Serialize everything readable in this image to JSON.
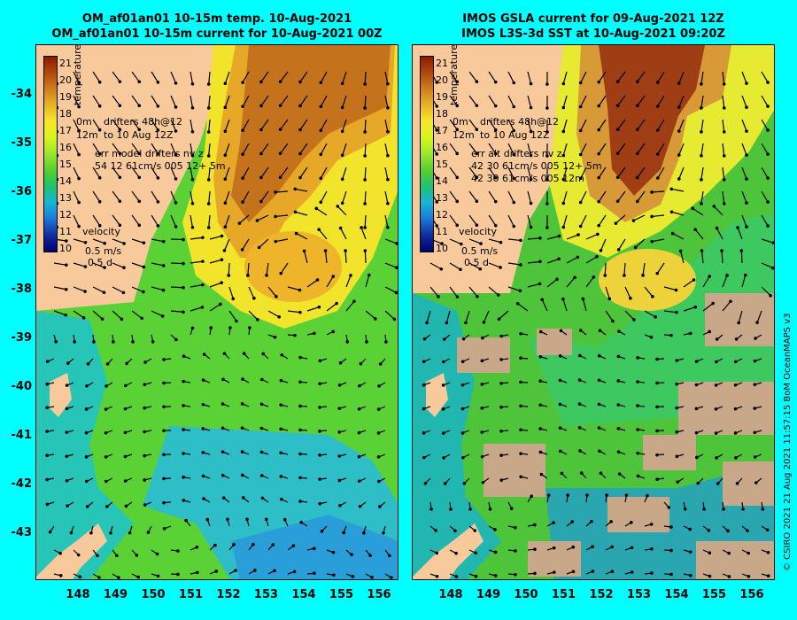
{
  "titles": {
    "left_line1": "OM_af01an01 10-15m temp. 10-Aug-2021",
    "left_line2": "OM_af01an01 10-15m current for 10-Aug-2021 00Z",
    "right_line1": "IMOS GSLA current for 09-Aug-2021 12Z",
    "right_line2": "IMOS L3S-3d SST at 10-Aug-2021 09:20Z"
  },
  "axes": {
    "lat_labels": [
      "-34",
      "-35",
      "-36",
      "-37",
      "-38",
      "-39",
      "-40",
      "-41",
      "-42",
      "-43"
    ],
    "lon_labels": [
      "148",
      "149",
      "150",
      "151",
      "152",
      "153",
      "154",
      "155",
      "156"
    ]
  },
  "colorbar": {
    "title": "temperature (C)",
    "ticks": [
      "21",
      "20",
      "19",
      "18",
      "17",
      "16",
      "15",
      "14",
      "13",
      "12",
      "11",
      "10"
    ],
    "colors": [
      "#8b1a00",
      "#b04a0c",
      "#cf7e1c",
      "#e8b428",
      "#f6e82a",
      "#d8f51a",
      "#9be62c",
      "#55d02c",
      "#20c070",
      "#18b4d8",
      "#1c78d8",
      "#102c9c",
      "#000070"
    ]
  },
  "left_annotations": {
    "drifters_a": "0m",
    "drifters_b": "drifters 48h@12",
    "drifters_c": "12m",
    "drifters_d": "to 10 Aug 12Z",
    "err_title": "err model drifters nv z",
    "err_line1": "54 12 61cm/s 005 12+ 5m",
    "velocity": "velocity",
    "vel_speed": "0.5 m/s",
    "vel_time": "0.5 d"
  },
  "right_annotations": {
    "drifters_a": "0m",
    "drifters_b": "drifters 48h@12",
    "drifters_c": "12m",
    "drifters_d": "to 10 Aug 12Z",
    "err_title": "err alt drifters nv z",
    "err_line1": "42 30 61cm/s 005 12+ 5m",
    "err_line2": "42 30 61cm/s 005 12m",
    "velocity": "velocity",
    "vel_speed": "0.5 m/s",
    "vel_time": "0.5 d"
  },
  "credit": "© CSIRO 2021   21 Aug 2021 11:57:15 BoM OceanMAPS v3",
  "colors": {
    "background": "#00ffff",
    "land": "#f7c99b",
    "cloud": "#c8a888"
  }
}
